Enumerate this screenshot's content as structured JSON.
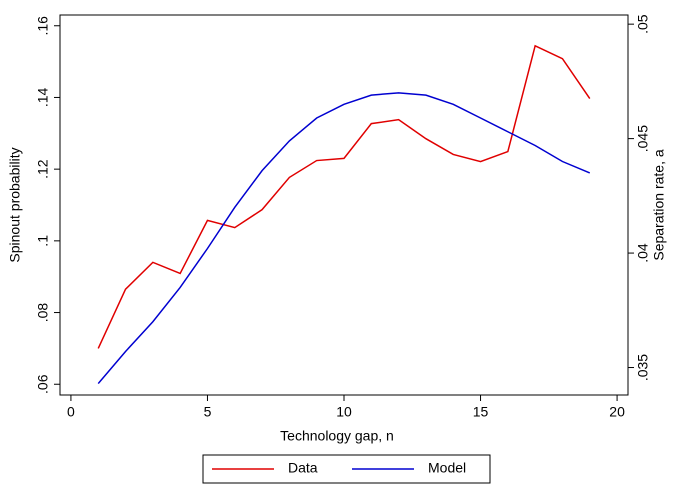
{
  "chart_data": {
    "type": "line",
    "x_label": "Technology gap, n",
    "y_label": "Spinout probability",
    "y2_label": "Separation rate, a",
    "x": [
      1,
      2,
      3,
      4,
      5,
      6,
      7,
      8,
      9,
      10,
      11,
      12,
      13,
      14,
      15,
      16,
      17,
      18,
      19
    ],
    "series": [
      {
        "name": "Data",
        "color": "#e00000",
        "values": [
          0.07,
          0.0865,
          0.094,
          0.0909,
          0.1057,
          0.1037,
          0.1087,
          0.1177,
          0.1224,
          0.123,
          0.1327,
          0.1338,
          0.1285,
          0.1241,
          0.1221,
          0.1249,
          0.1544,
          0.1508,
          0.1397
        ]
      },
      {
        "name": "Model",
        "color": "#0000d0",
        "axis": "y2",
        "values": [
          0.0343,
          0.0357,
          0.037,
          0.0385,
          0.0402,
          0.042,
          0.0436,
          0.0449,
          0.0459,
          0.0465,
          0.0469,
          0.047,
          0.0469,
          0.0465,
          0.0459,
          0.0453,
          0.0447,
          0.044,
          0.0435
        ]
      }
    ],
    "xlim": [
      -0.4,
      20.4
    ],
    "xticks": [
      0,
      5,
      10,
      15,
      20
    ],
    "ylim": [
      0.057,
      0.163
    ],
    "yticks": [
      {
        "value": 0.06,
        "label": ".06"
      },
      {
        "value": 0.08,
        "label": ".08"
      },
      {
        "value": 0.1,
        "label": ".1"
      },
      {
        "value": 0.12,
        "label": ".12"
      },
      {
        "value": 0.14,
        "label": ".14"
      },
      {
        "value": 0.16,
        "label": ".16"
      }
    ],
    "y2lim": [
      0.0338,
      0.0504
    ],
    "y2ticks": [
      {
        "value": 0.035,
        "label": ".035"
      },
      {
        "value": 0.04,
        "label": ".04"
      },
      {
        "value": 0.045,
        "label": ".045"
      },
      {
        "value": 0.05,
        "label": ".05"
      }
    ],
    "legend": "bottom"
  }
}
